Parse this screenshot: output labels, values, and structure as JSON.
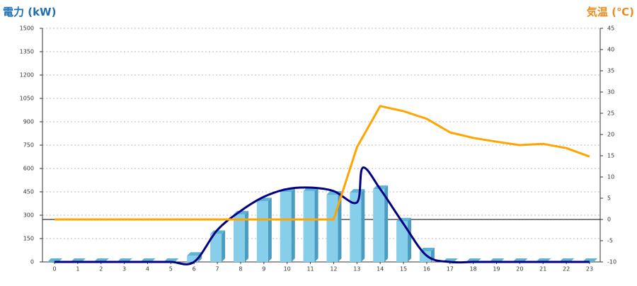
{
  "chart_data": {
    "type": "bar-line",
    "y_title": "電力 (kW)",
    "y2_title": "気温 (℃)",
    "categories": [
      "0",
      "1",
      "2",
      "3",
      "4",
      "5",
      "6",
      "7",
      "8",
      "9",
      "10",
      "11",
      "12",
      "13",
      "14",
      "15",
      "16",
      "17",
      "18",
      "19",
      "20",
      "21",
      "22",
      "23"
    ],
    "ylim": [
      0,
      1500
    ],
    "yticks": [
      0,
      150,
      300,
      450,
      600,
      750,
      900,
      1050,
      1200,
      1350,
      1500
    ],
    "y2lim": [
      -10,
      45
    ],
    "y2ticks": [
      -10,
      -5,
      0,
      5,
      10,
      15,
      20,
      25,
      30,
      35,
      40,
      45
    ],
    "grid": true,
    "reference_line": {
      "axis": "y2",
      "value": 0
    },
    "series": [
      {
        "type": "bar",
        "color": "#87ceeb",
        "values": [
          0,
          0,
          0,
          0,
          0,
          0,
          40,
          180,
          305,
          390,
          450,
          455,
          432,
          445,
          468,
          260,
          68,
          0,
          0,
          0,
          0,
          0,
          0,
          0
        ]
      },
      {
        "type": "line",
        "color": "#000080",
        "x": [
          0,
          1,
          2,
          3,
          4,
          5,
          6,
          7,
          8,
          9,
          10,
          11,
          12,
          13,
          13.25,
          14,
          15,
          16,
          17,
          18,
          19,
          20,
          21,
          22,
          23
        ],
        "values": [
          0,
          0,
          0,
          0,
          0,
          0,
          0,
          205,
          327,
          418,
          468,
          477,
          455,
          382,
          605,
          468,
          245,
          40,
          0,
          0,
          0,
          0,
          0,
          0,
          0
        ]
      },
      {
        "type": "line",
        "axis": "y2",
        "color": "#ffa500",
        "values": [
          0,
          0,
          0,
          0,
          0,
          0,
          0,
          0,
          0,
          0,
          0,
          0,
          0,
          17,
          26.7,
          25.5,
          23.7,
          20.5,
          19.2,
          18.3,
          17.5,
          17.8,
          16.8,
          14.8
        ]
      }
    ]
  }
}
